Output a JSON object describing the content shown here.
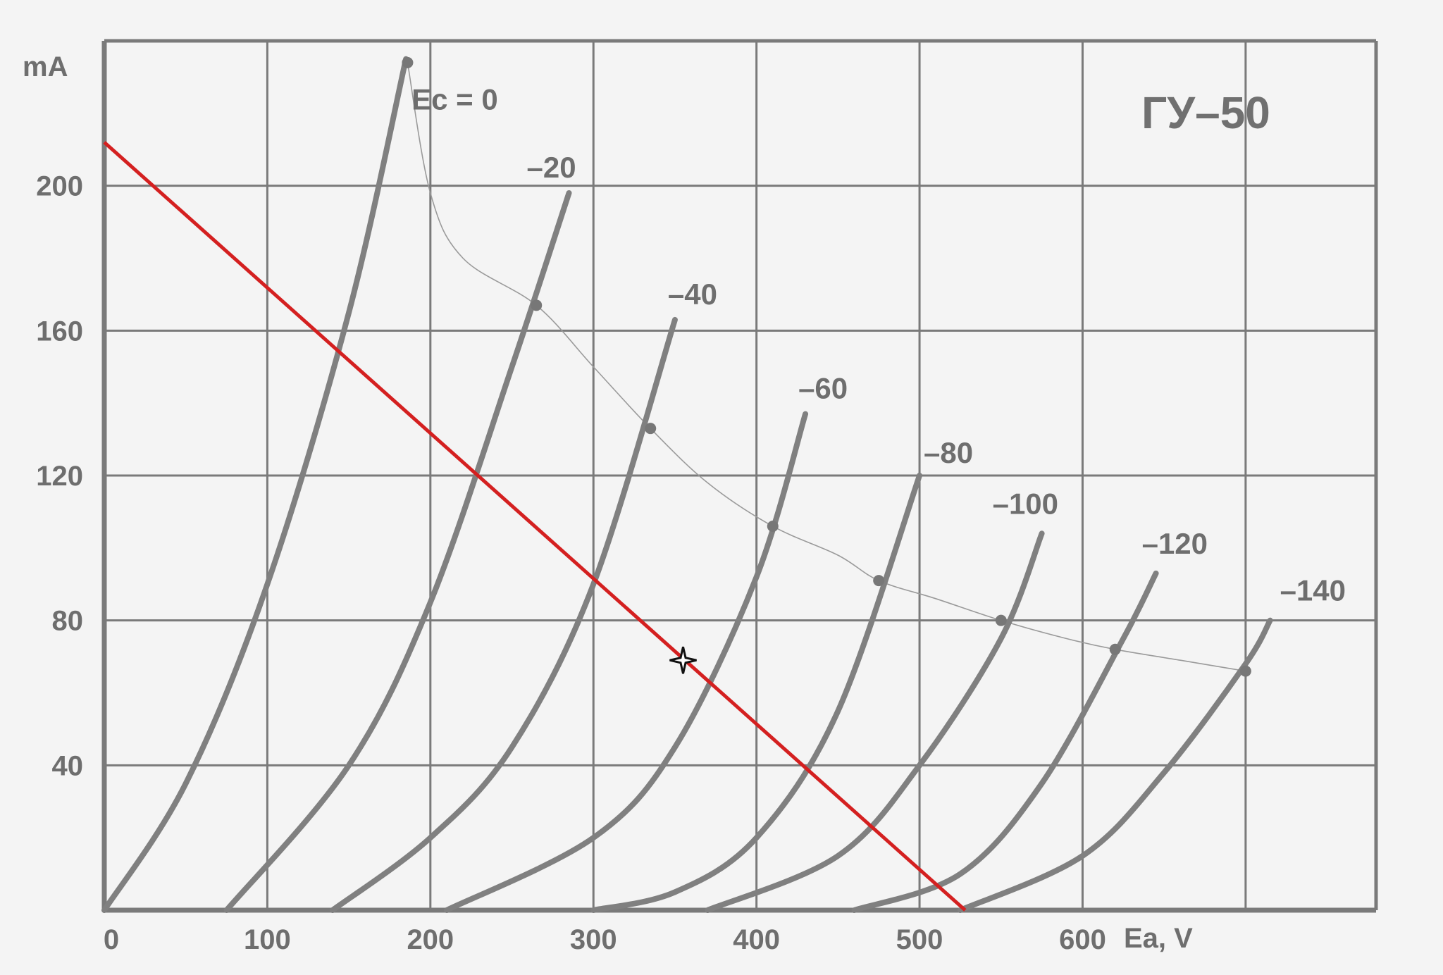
{
  "chart_data": {
    "type": "line",
    "title": "ГУ–50",
    "xlabel": "Ea, V",
    "ylabel": "mA",
    "xlim": [
      0,
      780
    ],
    "ylim": [
      0,
      240
    ],
    "x_ticks": [
      {
        "value": 0,
        "label": "0"
      },
      {
        "value": 100,
        "label": "100"
      },
      {
        "value": 200,
        "label": "200"
      },
      {
        "value": 300,
        "label": "300"
      },
      {
        "value": 400,
        "label": "400"
      },
      {
        "value": 500,
        "label": "500"
      },
      {
        "value": 600,
        "label": "600"
      }
    ],
    "y_ticks": [
      {
        "value": 40,
        "label": "40"
      },
      {
        "value": 80,
        "label": "80"
      },
      {
        "value": 120,
        "label": "120"
      },
      {
        "value": 160,
        "label": "160"
      },
      {
        "value": 200,
        "label": "200"
      }
    ],
    "grid": true,
    "colors": {
      "curves": "#808080",
      "grid": "#7a7a7a",
      "load_line": "#d42020",
      "envelope": "#9a9a9a"
    },
    "series": [
      {
        "name": "Ec = 0",
        "label": "Ec = 0",
        "points": [
          [
            0,
            0
          ],
          [
            50,
            35
          ],
          [
            100,
            90
          ],
          [
            150,
            165
          ],
          [
            185,
            235
          ]
        ]
      },
      {
        "name": "-20",
        "label": "–20",
        "points": [
          [
            75,
            0
          ],
          [
            150,
            40
          ],
          [
            200,
            85
          ],
          [
            250,
            150
          ],
          [
            285,
            198
          ]
        ]
      },
      {
        "name": "-40",
        "label": "–40",
        "points": [
          [
            140,
            0
          ],
          [
            200,
            20
          ],
          [
            250,
            45
          ],
          [
            300,
            90
          ],
          [
            350,
            163
          ]
        ]
      },
      {
        "name": "-60",
        "label": "–60",
        "points": [
          [
            210,
            0
          ],
          [
            300,
            20
          ],
          [
            350,
            45
          ],
          [
            400,
            92
          ],
          [
            430,
            137
          ]
        ]
      },
      {
        "name": "-80",
        "label": "–80",
        "points": [
          [
            300,
            0
          ],
          [
            350,
            5
          ],
          [
            400,
            20
          ],
          [
            450,
            55
          ],
          [
            500,
            120
          ]
        ]
      },
      {
        "name": "-100",
        "label": "–100",
        "points": [
          [
            370,
            0
          ],
          [
            450,
            15
          ],
          [
            500,
            40
          ],
          [
            550,
            75
          ],
          [
            575,
            104
          ]
        ]
      },
      {
        "name": "-120",
        "label": "–120",
        "points": [
          [
            460,
            0
          ],
          [
            525,
            10
          ],
          [
            575,
            35
          ],
          [
            625,
            75
          ],
          [
            645,
            93
          ]
        ]
      },
      {
        "name": "-140",
        "label": "–140",
        "points": [
          [
            525,
            0
          ],
          [
            600,
            15
          ],
          [
            650,
            38
          ],
          [
            700,
            68
          ],
          [
            715,
            80
          ]
        ]
      }
    ],
    "dissipation_curve": {
      "points": [
        [
          186,
          234
        ],
        [
          200,
          198
        ],
        [
          220,
          180
        ],
        [
          265,
          167
        ],
        [
          300,
          150
        ],
        [
          335,
          133
        ],
        [
          370,
          118
        ],
        [
          410,
          106
        ],
        [
          450,
          98
        ],
        [
          475,
          91
        ],
        [
          510,
          86
        ],
        [
          550,
          80
        ],
        [
          590,
          75
        ],
        [
          620,
          72
        ],
        [
          660,
          69
        ],
        [
          700,
          66
        ]
      ]
    },
    "envelope_markers": [
      [
        186,
        234
      ],
      [
        265,
        167
      ],
      [
        335,
        133
      ],
      [
        410,
        106
      ],
      [
        475,
        91
      ],
      [
        550,
        80
      ],
      [
        620,
        72
      ],
      [
        700,
        66
      ]
    ],
    "load_line": {
      "points": [
        [
          0,
          212
        ],
        [
          528,
          0
        ]
      ]
    },
    "operating_point": [
      355,
      69
    ]
  }
}
